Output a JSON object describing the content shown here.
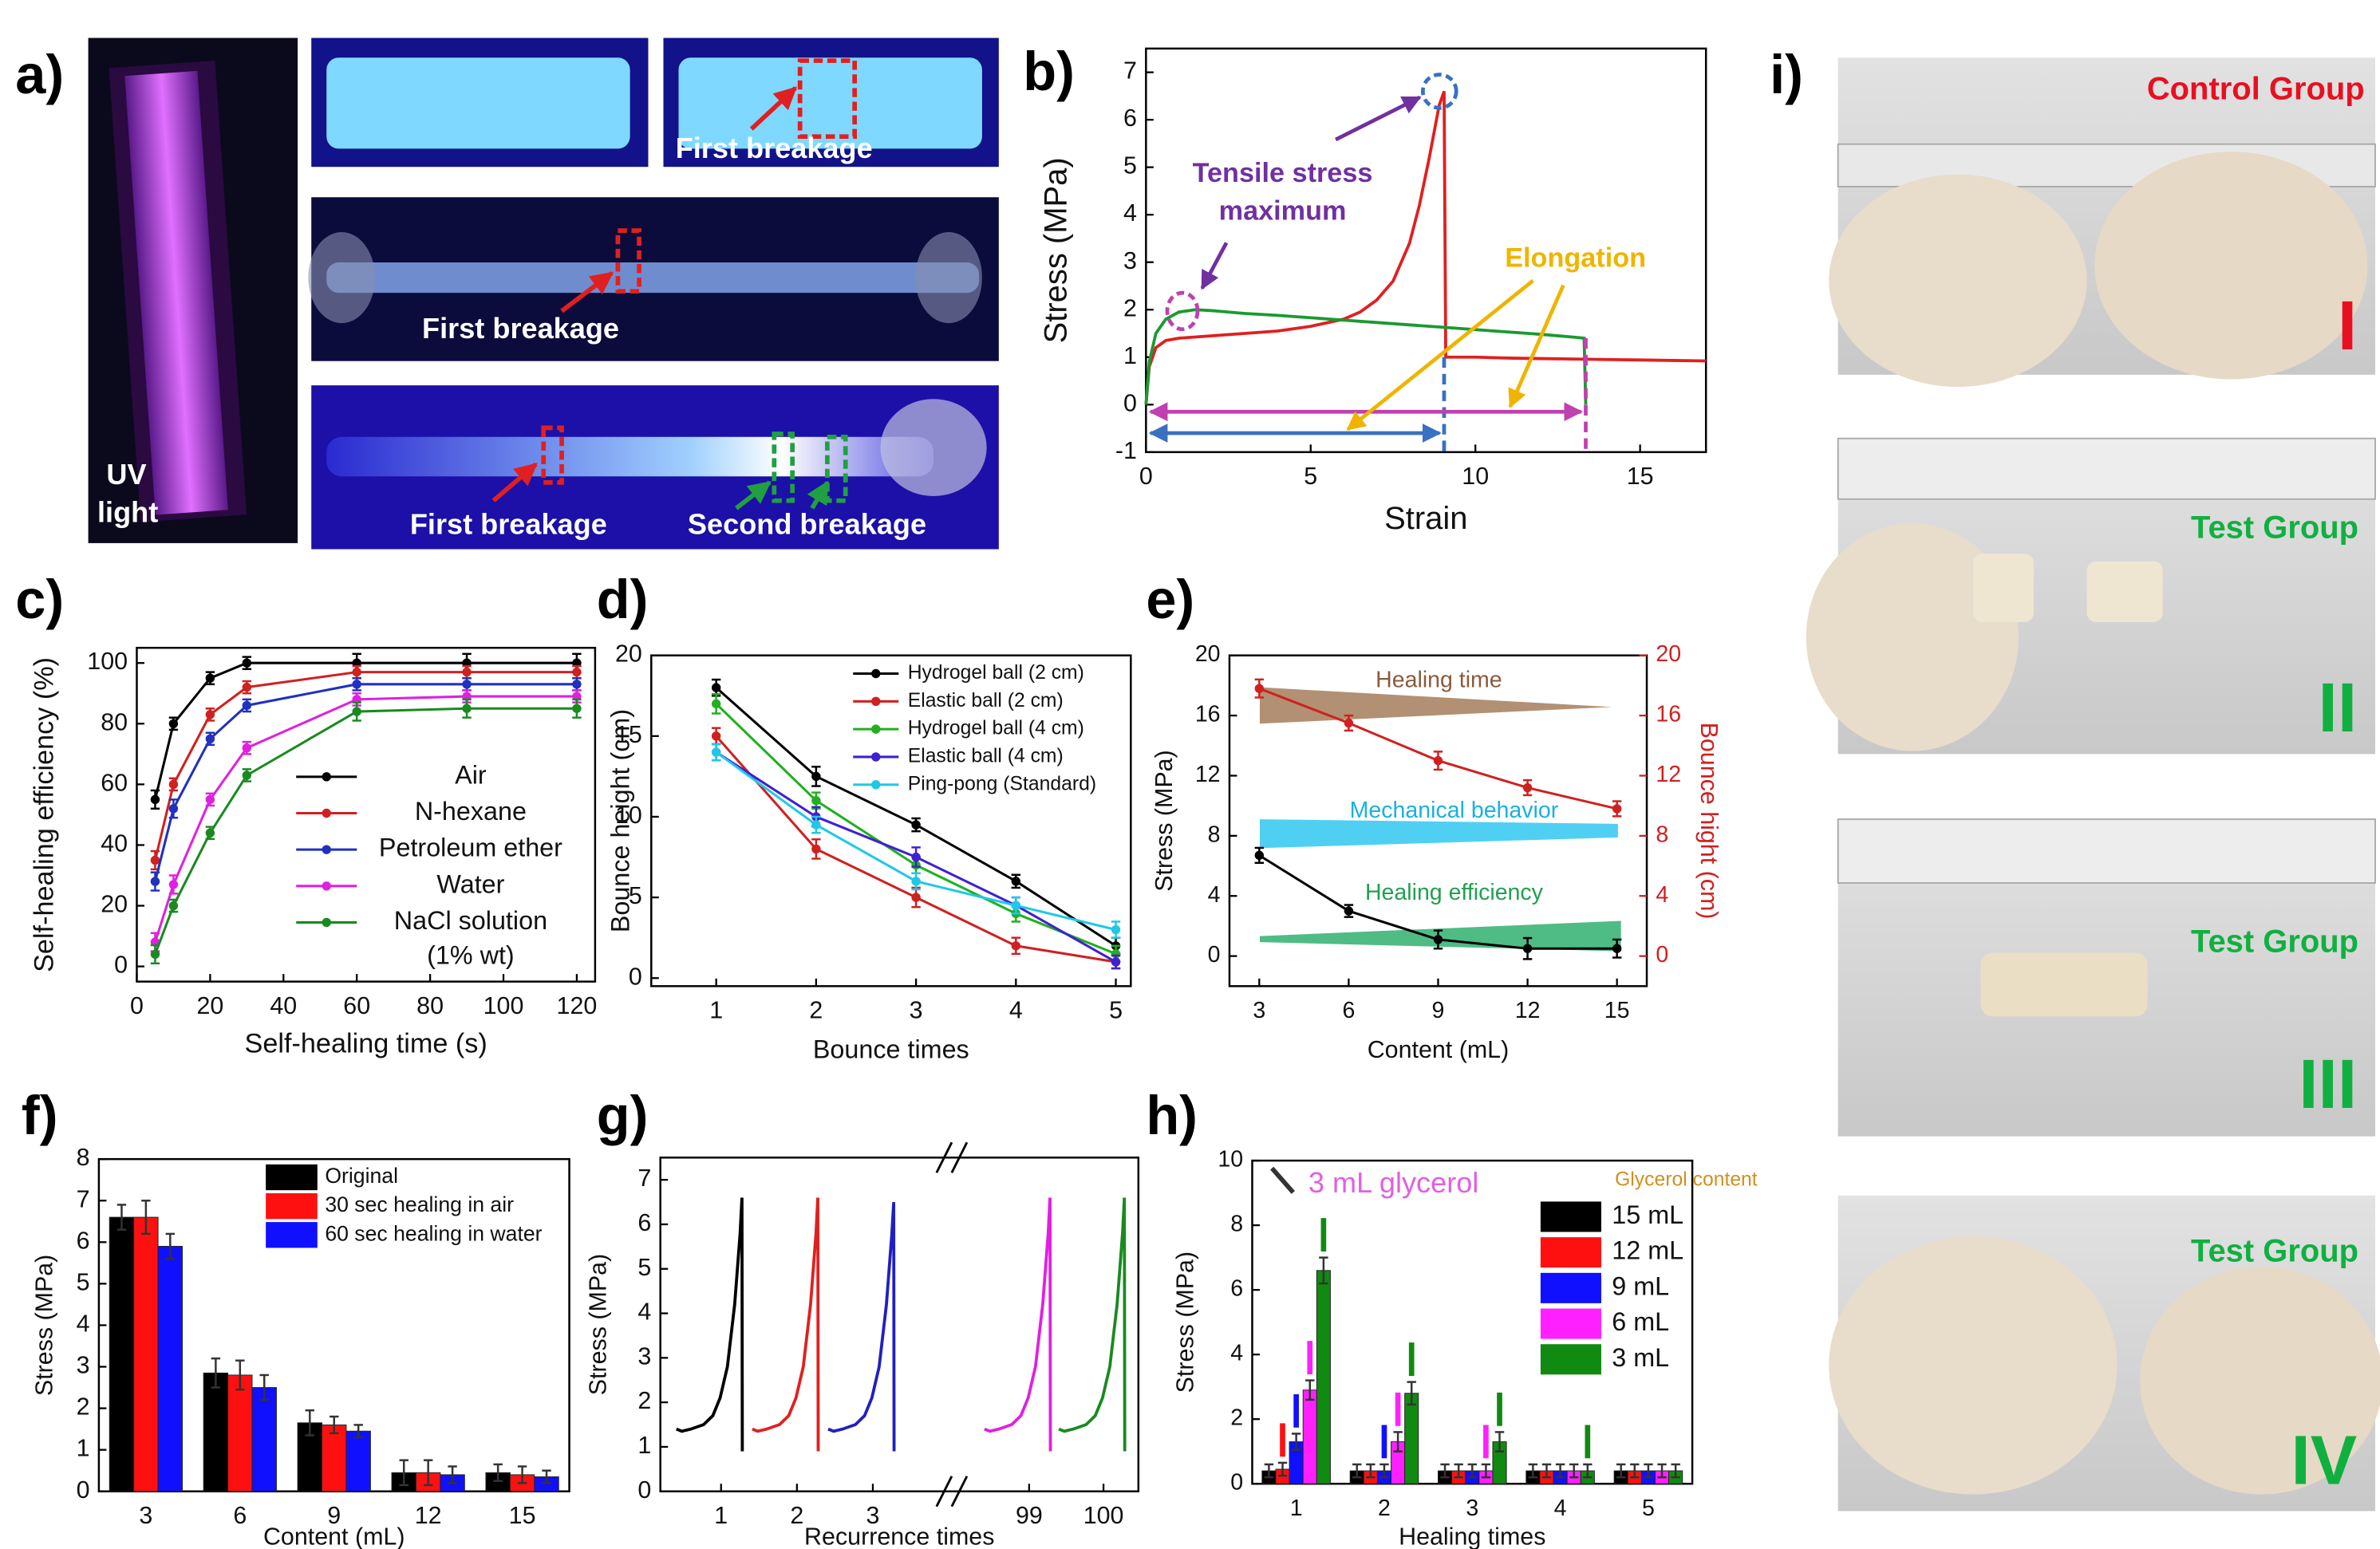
{
  "panel_labels": [
    "a)",
    "b)",
    "c)",
    "d)",
    "e)",
    "f)",
    "g)",
    "h)",
    "i)"
  ],
  "panel_a": {
    "labels": [
      "UV",
      "light",
      "First breakage",
      "First breakage",
      "First breakage",
      "Second breakage"
    ]
  },
  "panel_i": {
    "photos": [
      {
        "group": "Control Group",
        "numeral": "I"
      },
      {
        "group": "Test Group",
        "numeral": "II"
      },
      {
        "group": "Test Group",
        "numeral": "III"
      },
      {
        "group": "Test Group",
        "numeral": "IV"
      }
    ]
  },
  "chart_data": [
    {
      "type": "line",
      "x_label": "Strain",
      "y_label": "Stress (MPa)",
      "xlim": [
        0,
        17
      ],
      "xticks": [
        0,
        5,
        10,
        15
      ],
      "ylim": [
        -1,
        7.5
      ],
      "yticks": [
        -1,
        0,
        1,
        2,
        3,
        4,
        5,
        6,
        7
      ],
      "series": [
        {
          "color": "#e02020",
          "x": [
            0,
            0.1,
            0.3,
            0.6,
            1,
            2,
            3,
            4,
            5,
            6,
            6.5,
            7,
            7.5,
            8,
            8.3,
            8.6,
            8.9,
            9.05,
            9.1,
            10,
            11,
            12,
            13,
            14,
            15,
            16,
            17
          ],
          "values": [
            0,
            0.8,
            1.2,
            1.35,
            1.4,
            1.45,
            1.5,
            1.55,
            1.65,
            1.8,
            1.95,
            2.2,
            2.6,
            3.4,
            4.2,
            5.2,
            6.3,
            6.6,
            1,
            1,
            0.98,
            0.97,
            0.96,
            0.95,
            0.94,
            0.93,
            0.92
          ]
        },
        {
          "color": "#1a9a30",
          "x": [
            0,
            0.1,
            0.3,
            0.6,
            1,
            1.5,
            2,
            3,
            4,
            5,
            6,
            7,
            8,
            9,
            10,
            11,
            12,
            13,
            13.3,
            13.35
          ],
          "values": [
            0,
            0.9,
            1.5,
            1.8,
            1.95,
            2,
            1.98,
            1.92,
            1.88,
            1.83,
            1.78,
            1.73,
            1.68,
            1.63,
            1.58,
            1.53,
            1.48,
            1.42,
            1.4,
            0
          ]
        }
      ],
      "annotations": [
        {
          "text": "Tensile stress",
          "color": "#7030a0"
        },
        {
          "text": "maximum",
          "color": "#7030a0"
        },
        {
          "text": "Elongation",
          "color": "#f0b400"
        }
      ]
    },
    {
      "type": "line",
      "x_label": "Self-healing time (s)",
      "y_label": "Self-healing efficiency (%)",
      "xlim": [
        0,
        125
      ],
      "xticks": [
        0,
        20,
        40,
        60,
        80,
        100,
        120
      ],
      "ylim": [
        -5,
        105
      ],
      "yticks": [
        0,
        20,
        40,
        60,
        80,
        100
      ],
      "markers": true,
      "x": [
        5,
        10,
        20,
        30,
        60,
        90,
        120
      ],
      "series": [
        {
          "name": "Air",
          "color": "#000000",
          "values": [
            55,
            80,
            95,
            100,
            100,
            100,
            100
          ],
          "errors": [
            3,
            2,
            2,
            2,
            3,
            3,
            3
          ]
        },
        {
          "name": "N-hexane",
          "color": "#d02020",
          "values": [
            35,
            60,
            83,
            92,
            97,
            97,
            97
          ],
          "errors": [
            3,
            2,
            2,
            2,
            2,
            2,
            2
          ]
        },
        {
          "name": "Petroleum ether",
          "color": "#2030c0",
          "values": [
            28,
            52,
            75,
            86,
            93,
            93,
            93
          ],
          "errors": [
            3,
            3,
            2,
            2,
            2,
            2,
            2
          ]
        },
        {
          "name": "Water",
          "color": "#e020e0",
          "values": [
            8,
            27,
            55,
            72,
            88,
            89,
            89
          ],
          "errors": [
            3,
            3,
            2,
            2,
            2,
            2,
            2
          ]
        },
        {
          "name": "NaCl solution",
          "note": "(1% wt)",
          "color": "#1a8a20",
          "values": [
            4,
            20,
            44,
            63,
            84,
            85,
            85
          ],
          "errors": [
            3,
            2,
            2,
            2,
            3,
            3,
            3
          ]
        }
      ]
    },
    {
      "type": "line",
      "x_label": "Bounce times",
      "y_label": "Bounce height (cm)",
      "xlim": [
        0.35,
        5.15
      ],
      "xticks": [
        1,
        2,
        3,
        4,
        5
      ],
      "ylim": [
        -0.5,
        20
      ],
      "yticks": [
        0,
        5,
        10,
        15,
        20
      ],
      "markers": true,
      "x": [
        1,
        2,
        3,
        4,
        5
      ],
      "series": [
        {
          "name": "Hydrogel ball (2 cm)",
          "color": "#000000",
          "values": [
            18,
            12.5,
            9.5,
            6,
            2
          ],
          "errors": [
            0.5,
            0.6,
            0.4,
            0.4,
            0.5
          ]
        },
        {
          "name": "Elastic ball (2 cm)",
          "color": "#d02020",
          "values": [
            15,
            8,
            5,
            2,
            1
          ],
          "errors": [
            0.5,
            0.6,
            0.6,
            0.5,
            0.4
          ]
        },
        {
          "name": "Hydrogel ball (4 cm)",
          "color": "#20b020",
          "values": [
            17,
            11,
            7,
            4,
            1.5
          ],
          "errors": [
            0.6,
            0.5,
            0.5,
            0.5,
            0.5
          ]
        },
        {
          "name": "Elastic ball (4 cm)",
          "color": "#4020d0",
          "values": [
            14,
            10,
            7.5,
            4.5,
            1
          ],
          "errors": [
            0.5,
            0.6,
            0.6,
            0.5,
            0.4
          ]
        },
        {
          "name": "Ping-pong (Standard)",
          "color": "#20c8e8",
          "values": [
            14,
            9.5,
            6,
            4.5,
            3
          ],
          "errors": [
            0.5,
            0.5,
            0.5,
            0.5,
            0.5
          ]
        }
      ]
    },
    {
      "type": "line",
      "x_label": "Content (mL)",
      "y_label": "Stress (MPa)",
      "y2_label": "Bounce hight (cm)",
      "y2_color": "#d02020",
      "xlim": [
        2,
        16
      ],
      "xticks": [
        3,
        6,
        9,
        12,
        15
      ],
      "ylim": [
        -2,
        20
      ],
      "yticks": [
        0,
        4,
        8,
        12,
        16,
        20
      ],
      "y2lim": [
        -2,
        20
      ],
      "y2ticks": [
        0,
        4,
        8,
        12,
        16,
        20
      ],
      "markers": true,
      "x": [
        3,
        6,
        9,
        12,
        15
      ],
      "series": [
        {
          "color": "#000000",
          "values": [
            6.7,
            3,
            1.1,
            0.5,
            0.5
          ],
          "errors": [
            0.5,
            0.4,
            0.6,
            0.7,
            0.6
          ]
        },
        {
          "color": "#d02020",
          "axis": "y2",
          "values": [
            17.8,
            15.5,
            13,
            11.2,
            9.8
          ],
          "errors": [
            0.6,
            0.5,
            0.6,
            0.5,
            0.5
          ]
        }
      ],
      "annotations": [
        {
          "text": "Healing time",
          "color": "#8b5a3c"
        },
        {
          "text": "Mechanical behavior",
          "color": "#1ab0e0"
        },
        {
          "text": "Healing efficiency",
          "color": "#20a050"
        }
      ]
    },
    {
      "type": "bar",
      "x_label": "Content (mL)",
      "y_label": "Stress (MPa)",
      "categories": [
        "3",
        "6",
        "9",
        "12",
        "15"
      ],
      "ylim": [
        0,
        8
      ],
      "yticks": [
        0,
        1,
        2,
        3,
        4,
        5,
        6,
        7,
        8
      ],
      "series": [
        {
          "name": "Original",
          "color": "#000000",
          "values": [
            6.6,
            2.85,
            1.65,
            0.45,
            0.45
          ],
          "errors": [
            0.3,
            0.35,
            0.3,
            0.3,
            0.2
          ]
        },
        {
          "name": "30 sec healing in air",
          "color": "#ff1010",
          "values": [
            6.6,
            2.8,
            1.6,
            0.45,
            0.4
          ],
          "errors": [
            0.4,
            0.35,
            0.2,
            0.3,
            0.2
          ]
        },
        {
          "name": "60 sec healing in water",
          "color": "#1010ff",
          "values": [
            5.9,
            2.5,
            1.45,
            0.4,
            0.35
          ],
          "errors": [
            0.3,
            0.3,
            0.15,
            0.2,
            0.15
          ]
        }
      ]
    },
    {
      "type": "line",
      "x_label": "Recurrence times",
      "y_label": "Stress (MPa)",
      "categories": [
        "1",
        "2",
        "3",
        "99",
        "100"
      ],
      "ylim": [
        0,
        7.5
      ],
      "yticks": [
        0,
        1,
        2,
        3,
        4,
        5,
        6,
        7
      ],
      "x": [
        0,
        0.3,
        0.8,
        1.5,
        2,
        2.4,
        2.8,
        3.2,
        3.5,
        3.6,
        3.62
      ],
      "series": [
        {
          "color": "#000000",
          "values": [
            1.4,
            1.35,
            1.4,
            1.5,
            1.7,
            2.1,
            2.8,
            4.2,
            5.8,
            6.6,
            0.9
          ]
        },
        {
          "color": "#e02020",
          "values": [
            1.4,
            1.35,
            1.4,
            1.5,
            1.7,
            2.1,
            2.8,
            4.2,
            5.8,
            6.6,
            0.9
          ]
        },
        {
          "color": "#2020c0",
          "values": [
            1.4,
            1.35,
            1.4,
            1.5,
            1.7,
            2.1,
            2.8,
            4.2,
            5.8,
            6.5,
            0.9
          ]
        },
        {
          "color": "#e020e0",
          "values": [
            1.4,
            1.35,
            1.4,
            1.5,
            1.7,
            2.1,
            2.8,
            4.2,
            5.8,
            6.6,
            0.9
          ]
        },
        {
          "color": "#1a8a20",
          "values": [
            1.4,
            1.35,
            1.4,
            1.5,
            1.7,
            2.1,
            2.8,
            4.2,
            5.8,
            6.6,
            0.9
          ]
        }
      ]
    },
    {
      "type": "bar",
      "x_label": "Healing times",
      "y_label": "Stress (MPa)",
      "categories": [
        "1",
        "2",
        "3",
        "4",
        "5"
      ],
      "ylim": [
        0,
        10
      ],
      "yticks": [
        0,
        2,
        4,
        6,
        8,
        10
      ],
      "legend_title": "Glycerol content",
      "annotations": [
        {
          "text": "3 mL glycerol",
          "color": "#e060e0"
        }
      ],
      "series": [
        {
          "name": "15 mL",
          "color": "#000000",
          "values": [
            0.4,
            0.4,
            0.4,
            0.4,
            0.4
          ],
          "errors": [
            0.2,
            0.2,
            0.2,
            0.2,
            0.2
          ]
        },
        {
          "name": "12 mL",
          "color": "#ff1010",
          "values": [
            0.45,
            0.4,
            0.4,
            0.4,
            0.4
          ],
          "errors": [
            0.2,
            0.2,
            0.2,
            0.2,
            0.2
          ]
        },
        {
          "name": "9 mL",
          "color": "#1010ff",
          "values": [
            1.3,
            0.4,
            0.4,
            0.4,
            0.4
          ],
          "errors": [
            0.25,
            0.2,
            0.2,
            0.2,
            0.2
          ]
        },
        {
          "name": "6 mL",
          "color": "#ff20ff",
          "values": [
            2.9,
            1.3,
            0.4,
            0.4,
            0.4
          ],
          "errors": [
            0.3,
            0.3,
            0.2,
            0.2,
            0.2
          ]
        },
        {
          "name": "3 mL",
          "color": "#108a10",
          "values": [
            6.6,
            2.8,
            1.3,
            0.4,
            0.4
          ],
          "errors": [
            0.4,
            0.35,
            0.3,
            0.2,
            0.2
          ]
        }
      ]
    }
  ]
}
